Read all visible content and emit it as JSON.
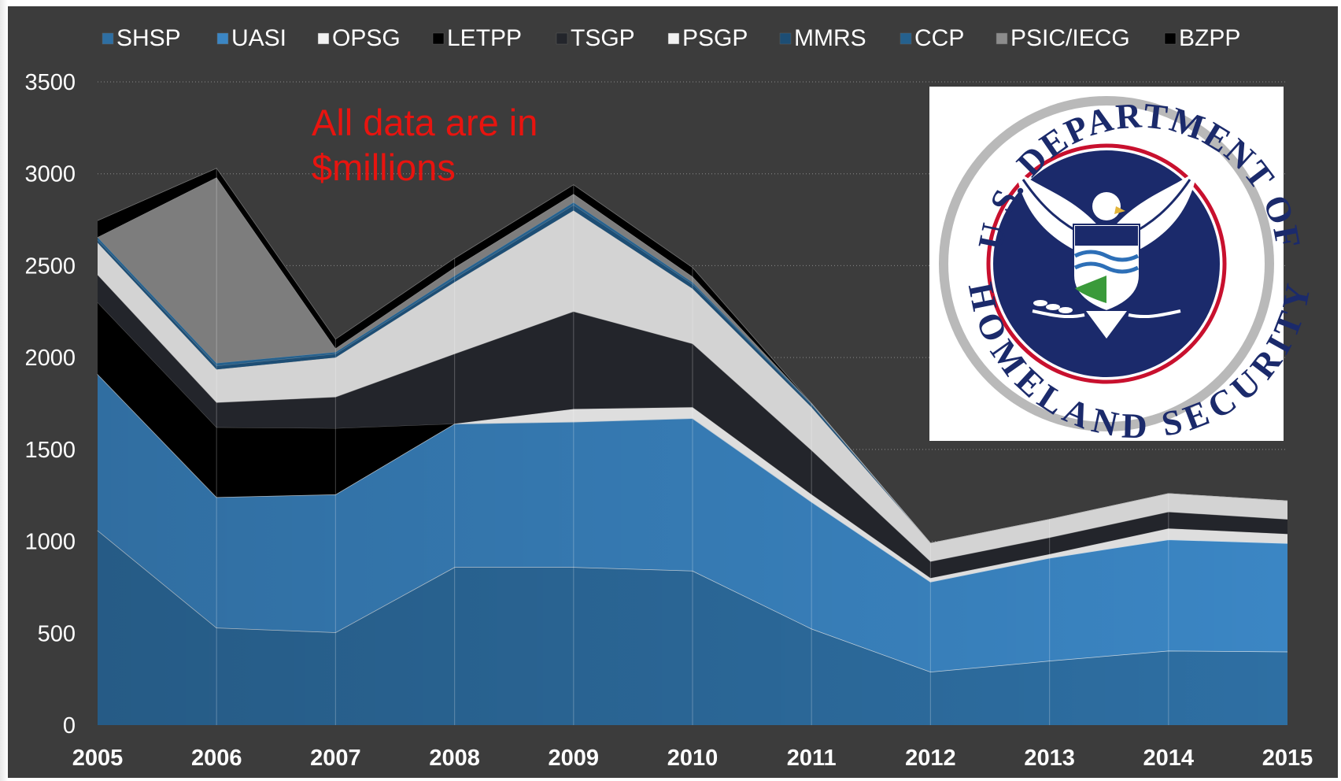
{
  "chart_data": {
    "type": "area",
    "stacked": true,
    "x": [
      2005,
      2006,
      2007,
      2008,
      2009,
      2010,
      2011,
      2012,
      2013,
      2014,
      2015
    ],
    "ylim": [
      0,
      3500
    ],
    "yticks": [
      0,
      500,
      1000,
      1500,
      2000,
      2500,
      3000,
      3500
    ],
    "grid": "horizontal dotted",
    "legend_position": "top",
    "annotation": "All data are in $millions",
    "series": [
      {
        "name": "SHSP",
        "color": "#2e6fa3",
        "values": [
          1060,
          530,
          505,
          860,
          860,
          840,
          525,
          290,
          350,
          405,
          400
        ]
      },
      {
        "name": "UASI",
        "color": "#3b86c4",
        "values": [
          850,
          710,
          750,
          780,
          790,
          830,
          690,
          490,
          560,
          605,
          590
        ]
      },
      {
        "name": "OPSG",
        "color": "#dedede",
        "values": [
          0,
          0,
          0,
          0,
          70,
          60,
          40,
          20,
          20,
          60,
          50
        ]
      },
      {
        "name": "LETPP",
        "color": "#000000",
        "values": [
          390,
          380,
          360,
          0,
          0,
          0,
          0,
          0,
          0,
          0,
          0
        ]
      },
      {
        "name": "TSGP",
        "color": "#23252b",
        "values": [
          150,
          135,
          170,
          380,
          530,
          345,
          240,
          90,
          90,
          90,
          80
        ]
      },
      {
        "name": "PSGP",
        "color": "#d3d3d3",
        "values": [
          175,
          180,
          215,
          390,
          550,
          300,
          235,
          100,
          100,
          100,
          100
        ]
      },
      {
        "name": "MMRS",
        "color": "#1d4e75",
        "values": [
          15,
          20,
          20,
          20,
          30,
          25,
          15,
          0,
          0,
          0,
          0
        ]
      },
      {
        "name": "CCP",
        "color": "#25618e",
        "values": [
          15,
          15,
          10,
          15,
          15,
          10,
          5,
          0,
          0,
          0,
          0
        ]
      },
      {
        "name": "PSIC/IECG",
        "color": "#7d7d7d",
        "values": [
          0,
          1010,
          20,
          45,
          45,
          30,
          0,
          0,
          0,
          0,
          0
        ]
      },
      {
        "name": "BZPP",
        "color": "#000000",
        "values": [
          90,
          50,
          50,
          50,
          50,
          50,
          0,
          0,
          0,
          0,
          0
        ]
      }
    ]
  },
  "legend": {
    "items": [
      {
        "label": "SHSP",
        "color": "#2e6fa3"
      },
      {
        "label": "UASI",
        "color": "#3b86c4"
      },
      {
        "label": "OPSG",
        "color": "#f2f2f2"
      },
      {
        "label": "LETPP",
        "color": "#000000"
      },
      {
        "label": "TSGP",
        "color": "#23252b"
      },
      {
        "label": "PSGP",
        "color": "#f2f2f2"
      },
      {
        "label": "MMRS",
        "color": "#1d4e75"
      },
      {
        "label": "CCP",
        "color": "#25618e"
      },
      {
        "label": "PSIC/IECG",
        "color": "#8c8c8c"
      },
      {
        "label": "BZPP",
        "color": "#000000"
      }
    ]
  },
  "logo": {
    "top_text": "U.S. DEPARTMENT OF",
    "bottom_text": "HOMELAND SECURITY"
  },
  "colors": {
    "background": "#3c3c3c",
    "annotation": "#e8140f",
    "seal_blue": "#1b2a6b",
    "seal_red": "#c8102e"
  }
}
